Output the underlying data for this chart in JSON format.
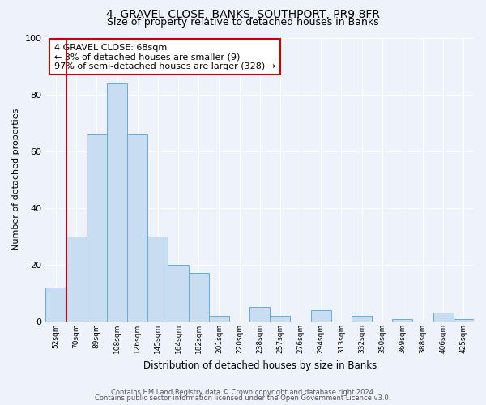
{
  "title": "4, GRAVEL CLOSE, BANKS, SOUTHPORT, PR9 8FR",
  "subtitle": "Size of property relative to detached houses in Banks",
  "xlabel": "Distribution of detached houses by size in Banks",
  "ylabel": "Number of detached properties",
  "bar_labels": [
    "52sqm",
    "70sqm",
    "89sqm",
    "108sqm",
    "126sqm",
    "145sqm",
    "164sqm",
    "182sqm",
    "201sqm",
    "220sqm",
    "238sqm",
    "257sqm",
    "276sqm",
    "294sqm",
    "313sqm",
    "332sqm",
    "350sqm",
    "369sqm",
    "388sqm",
    "406sqm",
    "425sqm"
  ],
  "bar_values": [
    12,
    30,
    66,
    84,
    66,
    30,
    20,
    17,
    2,
    0,
    5,
    2,
    0,
    4,
    0,
    2,
    0,
    1,
    0,
    3,
    1
  ],
  "bar_color": "#c9ddf2",
  "bar_edge_color": "#6aaad4",
  "highlight_color": "#cc0000",
  "annotation_text": "4 GRAVEL CLOSE: 68sqm\n← 3% of detached houses are smaller (9)\n97% of semi-detached houses are larger (328) →",
  "annotation_box_color": "#cc0000",
  "ylim": [
    0,
    100
  ],
  "yticks": [
    0,
    20,
    40,
    60,
    80,
    100
  ],
  "footer_line1": "Contains HM Land Registry data © Crown copyright and database right 2024.",
  "footer_line2": "Contains public sector information licensed under the Open Government Licence v3.0.",
  "bg_color": "#eef2fa",
  "grid_color": "#ffffff",
  "title_fontsize": 10,
  "subtitle_fontsize": 9
}
